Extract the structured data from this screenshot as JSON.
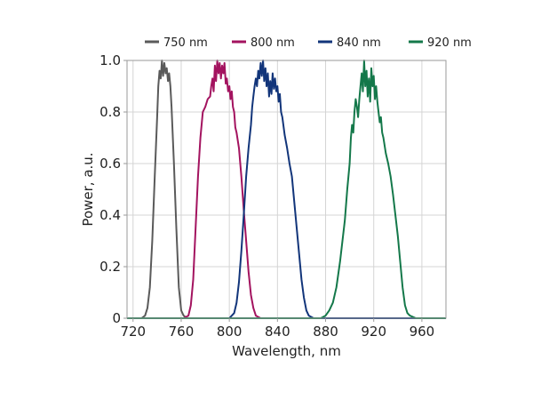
{
  "chart_data": {
    "type": "line",
    "title": "",
    "xlabel": "Wavelength, nm",
    "ylabel": "Power, a.u.",
    "xlim": [
      715,
      980
    ],
    "ylim": [
      0,
      1.0
    ],
    "x_ticks": [
      720,
      760,
      800,
      840,
      880,
      920,
      960
    ],
    "x_tick_labels": [
      "720",
      "760",
      "800",
      "840",
      "880",
      "920",
      "960"
    ],
    "y_ticks": [
      0,
      0.2,
      0.4,
      0.6,
      0.8,
      1.0
    ],
    "y_tick_labels": [
      "0",
      "0.2",
      "0.4",
      "0.6",
      "0.8",
      "1.0"
    ],
    "grid": true,
    "legend_position": "top",
    "series": [
      {
        "name": "750 nm",
        "color": "#5a5a5a",
        "points": [
          [
            715,
            0
          ],
          [
            727,
            0
          ],
          [
            730,
            0.01
          ],
          [
            732,
            0.04
          ],
          [
            734,
            0.12
          ],
          [
            736,
            0.3
          ],
          [
            738,
            0.55
          ],
          [
            740,
            0.78
          ],
          [
            741,
            0.9
          ],
          [
            742,
            0.96
          ],
          [
            743,
            0.93
          ],
          [
            744,
            1.0
          ],
          [
            745,
            0.94
          ],
          [
            746,
            0.99
          ],
          [
            747,
            0.95
          ],
          [
            748,
            0.97
          ],
          [
            749,
            0.92
          ],
          [
            750,
            0.95
          ],
          [
            751,
            0.9
          ],
          [
            752,
            0.82
          ],
          [
            754,
            0.6
          ],
          [
            756,
            0.35
          ],
          [
            758,
            0.12
          ],
          [
            760,
            0.03
          ],
          [
            762,
            0.01
          ],
          [
            765,
            0
          ],
          [
            980,
            0
          ]
        ]
      },
      {
        "name": "800 nm",
        "color": "#a3135f",
        "points": [
          [
            715,
            0
          ],
          [
            762,
            0
          ],
          [
            766,
            0.01
          ],
          [
            768,
            0.05
          ],
          [
            770,
            0.15
          ],
          [
            772,
            0.35
          ],
          [
            774,
            0.55
          ],
          [
            776,
            0.7
          ],
          [
            778,
            0.8
          ],
          [
            780,
            0.82
          ],
          [
            782,
            0.85
          ],
          [
            784,
            0.86
          ],
          [
            785,
            0.9
          ],
          [
            786,
            0.93
          ],
          [
            787,
            0.88
          ],
          [
            788,
            0.98
          ],
          [
            789,
            0.92
          ],
          [
            790,
            1.0
          ],
          [
            791,
            0.95
          ],
          [
            792,
            0.99
          ],
          [
            793,
            0.93
          ],
          [
            794,
            0.98
          ],
          [
            795,
            0.95
          ],
          [
            796,
            0.99
          ],
          [
            797,
            0.91
          ],
          [
            798,
            0.93
          ],
          [
            799,
            0.88
          ],
          [
            800,
            0.9
          ],
          [
            801,
            0.85
          ],
          [
            802,
            0.88
          ],
          [
            803,
            0.82
          ],
          [
            804,
            0.8
          ],
          [
            805,
            0.74
          ],
          [
            806,
            0.72
          ],
          [
            808,
            0.66
          ],
          [
            810,
            0.55
          ],
          [
            812,
            0.42
          ],
          [
            814,
            0.3
          ],
          [
            816,
            0.18
          ],
          [
            818,
            0.09
          ],
          [
            820,
            0.04
          ],
          [
            822,
            0.01
          ],
          [
            826,
            0
          ],
          [
            980,
            0
          ]
        ]
      },
      {
        "name": "840 nm",
        "color": "#12357a",
        "points": [
          [
            715,
            0
          ],
          [
            800,
            0
          ],
          [
            804,
            0.02
          ],
          [
            806,
            0.06
          ],
          [
            808,
            0.14
          ],
          [
            810,
            0.26
          ],
          [
            812,
            0.4
          ],
          [
            814,
            0.55
          ],
          [
            816,
            0.66
          ],
          [
            818,
            0.75
          ],
          [
            819,
            0.82
          ],
          [
            820,
            0.86
          ],
          [
            821,
            0.9
          ],
          [
            822,
            0.93
          ],
          [
            823,
            0.9
          ],
          [
            824,
            0.96
          ],
          [
            825,
            0.93
          ],
          [
            826,
            0.99
          ],
          [
            827,
            0.94
          ],
          [
            828,
            1.0
          ],
          [
            829,
            0.92
          ],
          [
            830,
            0.97
          ],
          [
            831,
            0.9
          ],
          [
            832,
            0.95
          ],
          [
            833,
            0.86
          ],
          [
            834,
            0.92
          ],
          [
            835,
            0.87
          ],
          [
            836,
            0.95
          ],
          [
            837,
            0.89
          ],
          [
            838,
            0.93
          ],
          [
            839,
            0.88
          ],
          [
            840,
            0.9
          ],
          [
            841,
            0.84
          ],
          [
            842,
            0.87
          ],
          [
            843,
            0.8
          ],
          [
            844,
            0.78
          ],
          [
            846,
            0.71
          ],
          [
            848,
            0.66
          ],
          [
            850,
            0.6
          ],
          [
            852,
            0.55
          ],
          [
            854,
            0.45
          ],
          [
            856,
            0.35
          ],
          [
            858,
            0.25
          ],
          [
            860,
            0.15
          ],
          [
            862,
            0.08
          ],
          [
            864,
            0.03
          ],
          [
            866,
            0.01
          ],
          [
            870,
            0
          ],
          [
            980,
            0
          ]
        ]
      },
      {
        "name": "920 nm",
        "color": "#14784a",
        "points": [
          [
            715,
            0
          ],
          [
            876,
            0
          ],
          [
            880,
            0.01
          ],
          [
            883,
            0.03
          ],
          [
            886,
            0.06
          ],
          [
            889,
            0.12
          ],
          [
            892,
            0.22
          ],
          [
            894,
            0.3
          ],
          [
            896,
            0.38
          ],
          [
            898,
            0.5
          ],
          [
            900,
            0.6
          ],
          [
            901,
            0.7
          ],
          [
            902,
            0.75
          ],
          [
            903,
            0.72
          ],
          [
            904,
            0.8
          ],
          [
            905,
            0.85
          ],
          [
            906,
            0.82
          ],
          [
            907,
            0.78
          ],
          [
            908,
            0.85
          ],
          [
            909,
            0.9
          ],
          [
            910,
            0.95
          ],
          [
            911,
            0.88
          ],
          [
            912,
            1.0
          ],
          [
            913,
            0.9
          ],
          [
            914,
            0.96
          ],
          [
            915,
            0.86
          ],
          [
            916,
            0.93
          ],
          [
            917,
            0.84
          ],
          [
            918,
            0.97
          ],
          [
            919,
            0.9
          ],
          [
            920,
            0.94
          ],
          [
            921,
            0.85
          ],
          [
            922,
            0.9
          ],
          [
            923,
            0.84
          ],
          [
            924,
            0.8
          ],
          [
            925,
            0.76
          ],
          [
            926,
            0.78
          ],
          [
            927,
            0.72
          ],
          [
            928,
            0.7
          ],
          [
            930,
            0.64
          ],
          [
            932,
            0.6
          ],
          [
            934,
            0.55
          ],
          [
            936,
            0.48
          ],
          [
            938,
            0.4
          ],
          [
            940,
            0.32
          ],
          [
            942,
            0.22
          ],
          [
            944,
            0.12
          ],
          [
            946,
            0.05
          ],
          [
            948,
            0.02
          ],
          [
            950,
            0.01
          ],
          [
            955,
            0
          ],
          [
            980,
            0
          ]
        ]
      }
    ]
  }
}
